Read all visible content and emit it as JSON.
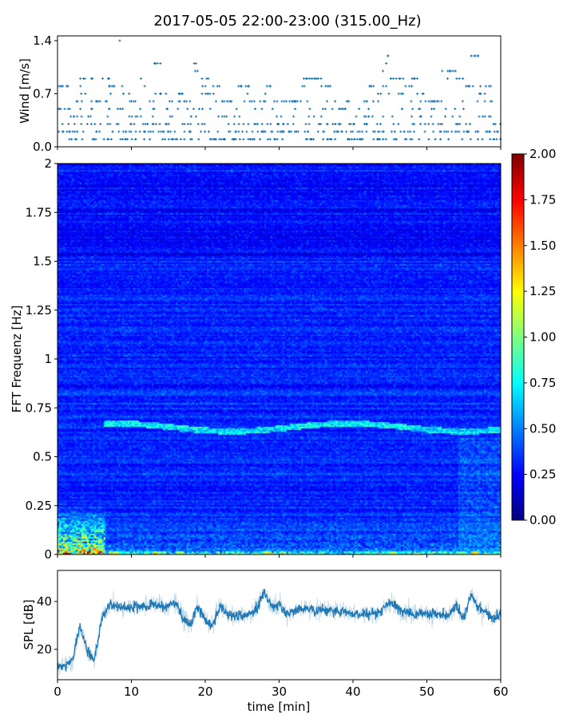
{
  "chart_data": [
    {
      "type": "scatter",
      "title": "2017-05-05 22:00-23:00 (315.00_Hz)",
      "ylabel": "Wind [m/s]",
      "xlim": [
        0,
        60
      ],
      "ylim": [
        0,
        1.4
      ],
      "yticks": [
        "0.0",
        "0.7",
        "1.4"
      ],
      "xticks": [
        0,
        10,
        20,
        30,
        40,
        50,
        60
      ],
      "color": "#1f77b4",
      "x": [
        0,
        1,
        2,
        3,
        4,
        5,
        6,
        7,
        8,
        9,
        10,
        11,
        12,
        13,
        14,
        15,
        16,
        17,
        18,
        19,
        20,
        21,
        22,
        23,
        24,
        25,
        26,
        27,
        28,
        29,
        30,
        31,
        32,
        33,
        34,
        35,
        36,
        37,
        38,
        39,
        40,
        41,
        42,
        43,
        44,
        45,
        46,
        47,
        48,
        49,
        50,
        51,
        52,
        53,
        54,
        55,
        56,
        57,
        58,
        59
      ],
      "max_wind_per_minute": [
        0.8,
        0.8,
        0.6,
        0.9,
        0.9,
        0.6,
        0.9,
        0.8,
        1.4,
        0.7,
        0.6,
        0.9,
        0.6,
        1.1,
        0.7,
        0.6,
        0.7,
        0.6,
        1.1,
        0.9,
        1.0,
        0.8,
        0.6,
        0.6,
        0.8,
        0.8,
        0.6,
        0.6,
        0.8,
        0.6,
        0.6,
        0.6,
        0.6,
        0.9,
        0.9,
        0.9,
        0.8,
        0.6,
        0.5,
        0.6,
        0.5,
        0.6,
        0.8,
        0.7,
        1.2,
        0.9,
        0.9,
        0.8,
        0.9,
        0.7,
        0.6,
        0.6,
        1.0,
        1.0,
        0.9,
        0.8,
        1.2,
        0.8,
        0.8,
        0.3
      ]
    },
    {
      "type": "heatmap",
      "ylabel": "FFT Frequenz [Hz]",
      "xlim": [
        0,
        60
      ],
      "ylim": [
        0,
        2
      ],
      "yticks": [
        "0",
        "0.25",
        "0.5",
        "0.75",
        "1",
        "1.25",
        "1.5",
        "1.75",
        "2"
      ],
      "colormap": "jet",
      "clim": [
        0,
        2
      ],
      "colorbar_ticks": [
        "0.00",
        "0.25",
        "0.50",
        "0.75",
        "1.00",
        "1.25",
        "1.50",
        "1.75",
        "2.00"
      ],
      "background_level": 0.25,
      "ridge_frequency_hz": 0.65,
      "ridge_start_min": 6,
      "high_energy_low_freq_until_min": 6.5
    },
    {
      "type": "line",
      "xlabel": "time [min]",
      "ylabel": "SPL [dB]",
      "xlim": [
        0,
        60
      ],
      "ylim": [
        7.3,
        53
      ],
      "yticks": [
        "20",
        "40"
      ],
      "xticks": [
        "0",
        "10",
        "20",
        "30",
        "40",
        "50",
        "60"
      ],
      "color": "#1f77b4",
      "x": [
        0,
        1,
        2,
        3,
        4,
        5,
        6,
        7,
        8,
        9,
        10,
        11,
        12,
        13,
        14,
        15,
        16,
        17,
        18,
        19,
        20,
        21,
        22,
        23,
        24,
        25,
        26,
        27,
        28,
        29,
        30,
        31,
        32,
        33,
        34,
        35,
        36,
        37,
        38,
        39,
        40,
        41,
        42,
        43,
        44,
        45,
        46,
        47,
        48,
        49,
        50,
        51,
        52,
        53,
        54,
        55,
        56,
        57,
        58,
        59,
        60
      ],
      "values": [
        13,
        13,
        15,
        30,
        20,
        15,
        33,
        39,
        38,
        37,
        38,
        38,
        38,
        39,
        38,
        38,
        40,
        33,
        30,
        38,
        32,
        30,
        38,
        35,
        34,
        34,
        35,
        37,
        44,
        38,
        39,
        35,
        36,
        37,
        37,
        36,
        37,
        36,
        36,
        36,
        35,
        35,
        35,
        35,
        36,
        40,
        37,
        36,
        35,
        35,
        35,
        35,
        34,
        34,
        38,
        33,
        43,
        37,
        36,
        33,
        35
      ]
    }
  ]
}
